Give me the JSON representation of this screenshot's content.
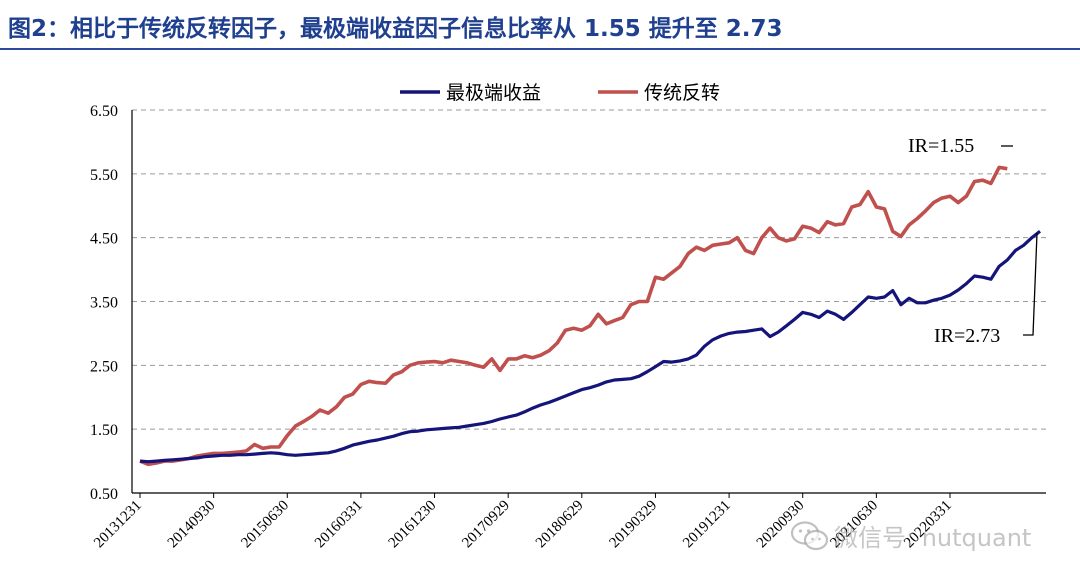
{
  "title": "图2：相比于传统反转因子，最极端收益因子信息比率从 1.55 提升至 2.73",
  "watermark": {
    "text": "微信号: nutquant",
    "icon": "wechat-icon"
  },
  "chart_data": {
    "type": "line",
    "title": "",
    "xlabel": "",
    "ylabel": "",
    "ylim": [
      0.5,
      6.5
    ],
    "yticks": [
      0.5,
      1.5,
      2.5,
      3.5,
      4.5,
      5.5,
      6.5
    ],
    "ytick_labels": [
      "0.50",
      "1.50",
      "2.50",
      "3.50",
      "4.50",
      "5.50",
      "6.50"
    ],
    "xtick_labels": [
      "20131231",
      "20140930",
      "20150630",
      "20160331",
      "20161230",
      "20170929",
      "20180629",
      "20190329",
      "20191231",
      "20200930",
      "20210630",
      "20220331"
    ],
    "xtick_index_start": 0,
    "xtick_every": 9,
    "grid": "horizontal-dashed",
    "legend": "top-center",
    "annotations": [
      {
        "text": "IR=1.55",
        "series": "传统反转",
        "point": "last"
      },
      {
        "text": "IR=2.73",
        "series": "最极端收益",
        "point": "last"
      }
    ],
    "series": [
      {
        "name": "最极端收益",
        "color": "#14147a",
        "values": [
          1.0,
          0.99,
          1.0,
          1.01,
          1.02,
          1.03,
          1.04,
          1.05,
          1.07,
          1.08,
          1.09,
          1.09,
          1.1,
          1.1,
          1.11,
          1.12,
          1.13,
          1.12,
          1.1,
          1.09,
          1.1,
          1.11,
          1.12,
          1.13,
          1.16,
          1.2,
          1.25,
          1.28,
          1.31,
          1.33,
          1.36,
          1.39,
          1.43,
          1.46,
          1.47,
          1.49,
          1.5,
          1.51,
          1.52,
          1.53,
          1.55,
          1.57,
          1.59,
          1.62,
          1.66,
          1.69,
          1.72,
          1.77,
          1.83,
          1.88,
          1.92,
          1.97,
          2.02,
          2.07,
          2.12,
          2.15,
          2.19,
          2.24,
          2.27,
          2.28,
          2.29,
          2.33,
          2.4,
          2.48,
          2.56,
          2.55,
          2.57,
          2.6,
          2.66,
          2.8,
          2.9,
          2.96,
          3.0,
          3.02,
          3.03,
          3.05,
          3.07,
          2.95,
          3.02,
          3.12,
          3.22,
          3.33,
          3.3,
          3.25,
          3.35,
          3.3,
          3.22,
          3.33,
          3.45,
          3.57,
          3.55,
          3.57,
          3.67,
          3.45,
          3.55,
          3.48,
          3.48,
          3.52,
          3.55,
          3.6,
          3.68,
          3.78,
          3.9,
          3.88,
          3.85,
          4.05,
          4.15,
          4.3,
          4.38,
          4.5,
          4.6
        ]
      },
      {
        "name": "传统反转",
        "color": "#c0504d",
        "values": [
          1.0,
          0.95,
          0.97,
          1.0,
          1.0,
          1.02,
          1.04,
          1.08,
          1.1,
          1.12,
          1.12,
          1.13,
          1.14,
          1.16,
          1.26,
          1.2,
          1.22,
          1.22,
          1.4,
          1.55,
          1.62,
          1.7,
          1.8,
          1.75,
          1.85,
          2.0,
          2.05,
          2.2,
          2.25,
          2.23,
          2.22,
          2.35,
          2.4,
          2.5,
          2.54,
          2.55,
          2.56,
          2.54,
          2.58,
          2.56,
          2.54,
          2.5,
          2.47,
          2.6,
          2.42,
          2.6,
          2.6,
          2.65,
          2.62,
          2.66,
          2.73,
          2.85,
          3.05,
          3.08,
          3.05,
          3.12,
          3.3,
          3.15,
          3.2,
          3.25,
          3.45,
          3.5,
          3.5,
          3.88,
          3.85,
          3.95,
          4.05,
          4.25,
          4.35,
          4.3,
          4.38,
          4.4,
          4.42,
          4.5,
          4.3,
          4.25,
          4.5,
          4.65,
          4.5,
          4.45,
          4.48,
          4.68,
          4.65,
          4.58,
          4.75,
          4.7,
          4.72,
          4.98,
          5.02,
          5.22,
          4.98,
          4.95,
          4.6,
          4.52,
          4.7,
          4.8,
          4.92,
          5.05,
          5.12,
          5.15,
          5.05,
          5.15,
          5.38,
          5.4,
          5.35,
          5.6,
          5.58
        ]
      }
    ]
  }
}
